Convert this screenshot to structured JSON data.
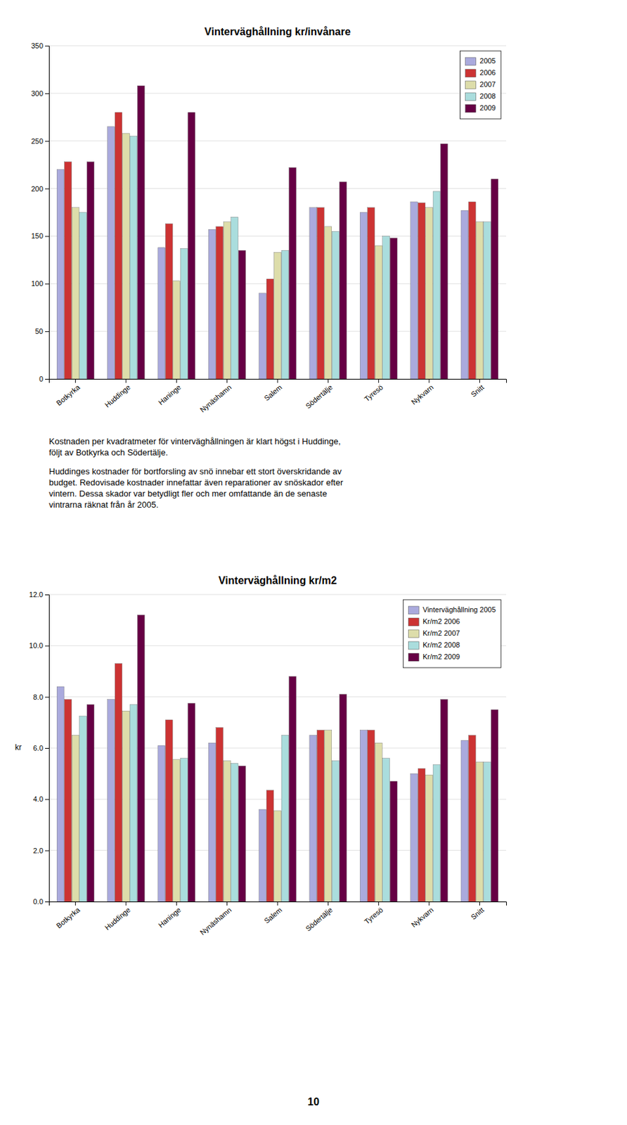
{
  "chart_data": [
    {
      "type": "bar",
      "title": "Vinterväghållning kr/invånare",
      "categories": [
        "Botkyrka",
        "Huddinge",
        "Haninge",
        "Nynäshamn",
        "Salem",
        "Södertälje",
        "Tyresö",
        "Nykvarn",
        "Snitt"
      ],
      "series": [
        {
          "name": "2005",
          "color": "#aaaadd",
          "values": [
            220,
            265,
            138,
            157,
            90,
            180,
            175,
            186,
            177
          ]
        },
        {
          "name": "2006",
          "color": "#cc3333",
          "values": [
            228,
            280,
            163,
            160,
            105,
            180,
            180,
            185,
            186
          ]
        },
        {
          "name": "2007",
          "color": "#ddddaa",
          "values": [
            180,
            258,
            103,
            165,
            133,
            160,
            140,
            180,
            165
          ]
        },
        {
          "name": "2008",
          "color": "#aadddd",
          "values": [
            175,
            255,
            137,
            170,
            135,
            155,
            150,
            197,
            165
          ]
        },
        {
          "name": "2009",
          "color": "#660044",
          "values": [
            228,
            308,
            280,
            135,
            222,
            207,
            148,
            247,
            210
          ]
        }
      ],
      "ylim": [
        0,
        350
      ],
      "yticks": [
        0,
        50,
        100,
        150,
        200,
        250,
        300,
        350
      ],
      "grid": true,
      "legend": "upper right",
      "annotations": [
        "Kostnaden per kvadratmeter för vinterväghållningen är klart högst i Huddinge,\nföljt av Botkyrka och Södertälje.",
        "Huddinges kostnader för bortforsling av snö innebar ett stort överskridande av\nbudget. Redovisade kostnader innefattar även reparationer av snöskador efter\nvintern. Dessa skador var betydligt fler och mer omfattande än de senaste\nvintrarna räknat från år 2005."
      ]
    },
    {
      "type": "bar",
      "title": "Vinterväghållning kr/m2",
      "y_label": "kr",
      "categories": [
        "Botkyrka",
        "Huddinge",
        "Haninge",
        "Nynäshamn",
        "Salem",
        "Södertälje",
        "Tyresö",
        "Nykvarn",
        "Snitt"
      ],
      "series": [
        {
          "name": "Vinterväghållning 2005",
          "color": "#aaaadd",
          "values": [
            8.4,
            7.9,
            6.1,
            6.2,
            3.6,
            6.5,
            6.7,
            5.0,
            6.3
          ]
        },
        {
          "name": "Kr/m2 2006",
          "color": "#cc3333",
          "values": [
            7.9,
            9.3,
            7.1,
            6.8,
            4.35,
            6.7,
            6.7,
            5.2,
            6.5
          ]
        },
        {
          "name": "Kr/m2 2007",
          "color": "#ddddaa",
          "values": [
            6.5,
            7.45,
            5.55,
            5.5,
            3.55,
            6.7,
            6.2,
            4.95,
            5.45
          ]
        },
        {
          "name": "Kr/m2 2008",
          "color": "#aadddd",
          "values": [
            7.25,
            7.7,
            5.6,
            5.4,
            6.5,
            5.5,
            5.6,
            5.35,
            5.45
          ]
        },
        {
          "name": "Kr/m2 2009",
          "color": "#660044",
          "values": [
            7.7,
            11.2,
            7.75,
            5.3,
            8.8,
            8.1,
            4.7,
            7.9,
            7.5
          ]
        }
      ],
      "ylim": [
        0,
        12
      ],
      "yticks": [
        {
          "value": 0,
          "label": "0.0"
        },
        {
          "value": 2,
          "label": "2.0"
        },
        {
          "value": 4,
          "label": "4.0"
        },
        {
          "value": 6,
          "label": "6.0"
        },
        {
          "value": 8,
          "label": "8.0"
        },
        {
          "value": 10,
          "label": "10.0"
        },
        {
          "value": 12,
          "label": "12.0"
        }
      ],
      "grid": true,
      "legend": "upper right",
      "annotations": [
        "10"
      ]
    }
  ]
}
